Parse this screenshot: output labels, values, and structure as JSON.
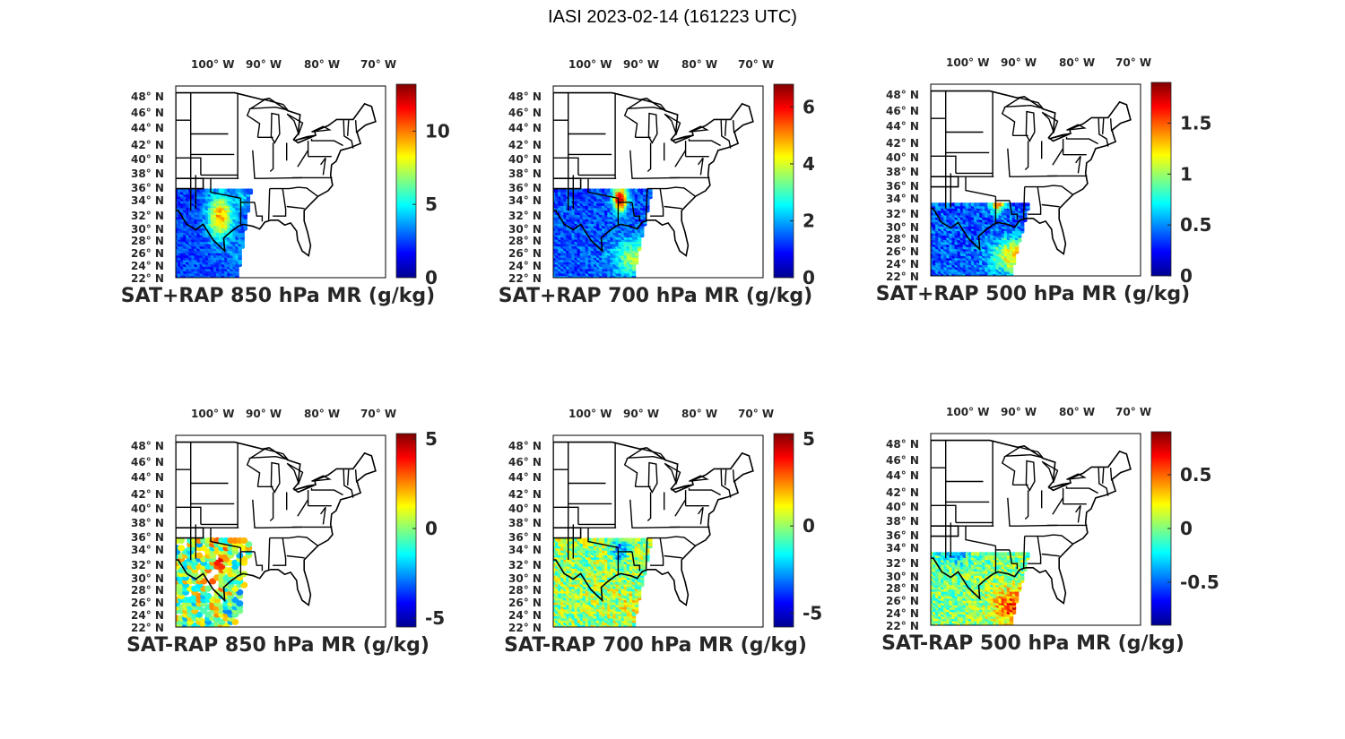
{
  "figure": {
    "title": "IASI 2023-02-14 (161223 UTC)"
  },
  "map": {
    "lon_ticks": [
      "100",
      "90",
      "80",
      "70"
    ],
    "lon_suffix": "W",
    "lat_ticks": [
      "48",
      "46",
      "44",
      "42",
      "40",
      "38",
      "36",
      "34",
      "32",
      "30",
      "28",
      "26",
      "24",
      "22"
    ],
    "lat_suffix": "N",
    "degree_symbol": "°"
  },
  "colormap": [
    "#00008f",
    "#0000ff",
    "#0080ff",
    "#00ffff",
    "#80ff80",
    "#ffff00",
    "#ff8000",
    "#ff0000",
    "#800000"
  ],
  "panels": [
    {
      "id": "sat-rap-sum-850",
      "title": "SAT+RAP 850 hPa MR (g/kg)",
      "colorbar": {
        "min": 0,
        "max": 13.2,
        "ticks": [
          {
            "v": 0,
            "t": "0"
          },
          {
            "v": 5,
            "t": "5"
          },
          {
            "v": 10,
            "t": "10"
          }
        ]
      }
    },
    {
      "id": "sat-rap-sum-700",
      "title": "SAT+RAP 700 hPa MR (g/kg)",
      "colorbar": {
        "min": 0,
        "max": 6.8,
        "ticks": [
          {
            "v": 0,
            "t": "0"
          },
          {
            "v": 2,
            "t": "2"
          },
          {
            "v": 4,
            "t": "4"
          },
          {
            "v": 6,
            "t": "6"
          }
        ]
      }
    },
    {
      "id": "sat-rap-sum-500",
      "title": "SAT+RAP 500 hPa MR (g/kg)",
      "colorbar": {
        "min": 0,
        "max": 1.9,
        "ticks": [
          {
            "v": 0,
            "t": "0"
          },
          {
            "v": 0.5,
            "t": "0.5"
          },
          {
            "v": 1,
            "t": "1"
          },
          {
            "v": 1.5,
            "t": "1.5"
          }
        ]
      }
    },
    {
      "id": "sat-rap-diff-850",
      "title": "SAT-RAP 850 hPa MR (g/kg)",
      "colorbar": {
        "min": -5.5,
        "max": 5.3,
        "ticks": [
          {
            "v": -5,
            "t": "-5"
          },
          {
            "v": 0,
            "t": "0"
          },
          {
            "v": 5,
            "t": "5"
          }
        ]
      }
    },
    {
      "id": "sat-rap-diff-700",
      "title": "SAT-RAP 700 hPa MR (g/kg)",
      "colorbar": {
        "min": -5.8,
        "max": 5.3,
        "ticks": [
          {
            "v": -5,
            "t": "-5"
          },
          {
            "v": 0,
            "t": "0"
          },
          {
            "v": 5,
            "t": "5"
          }
        ]
      }
    },
    {
      "id": "sat-rap-diff-500",
      "title": "SAT-RAP 500 hPa MR (g/kg)",
      "colorbar": {
        "min": -0.9,
        "max": 0.9,
        "ticks": [
          {
            "v": -0.5,
            "t": "-0.5"
          },
          {
            "v": 0,
            "t": "0"
          },
          {
            "v": 0.5,
            "t": "0.5"
          }
        ]
      }
    }
  ]
}
